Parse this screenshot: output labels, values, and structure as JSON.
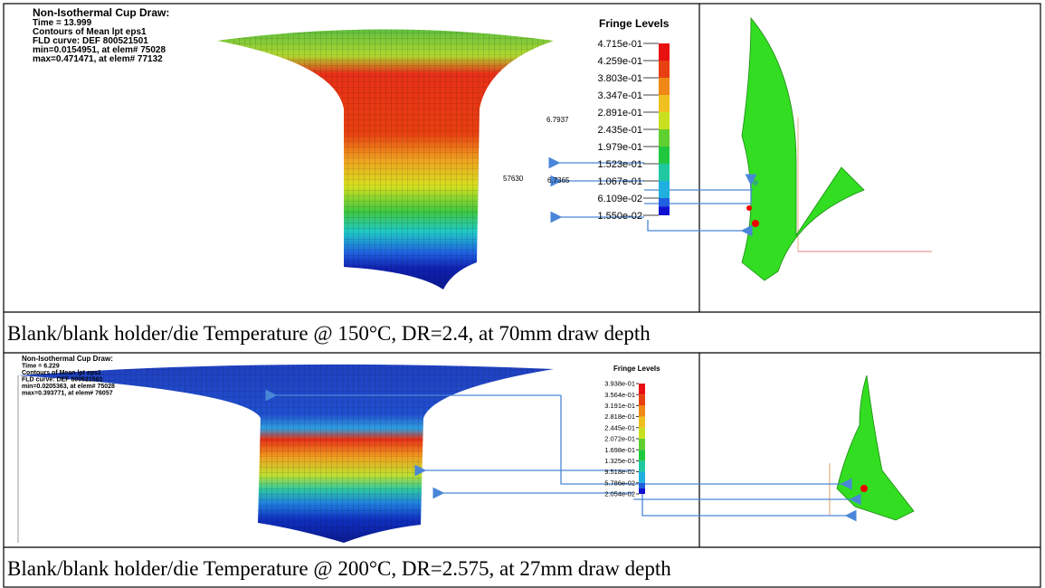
{
  "panels": [
    {
      "header_lines": [
        "Non-Isothermal Cup Draw:",
        "Time =     13.999",
        "Contours of Mean   lpt eps1",
        "FLD curve: DEF 800521501",
        " min=0.0154951, at elem# 75028",
        " max=0.471471, at elem# 77132"
      ],
      "legend": {
        "title": "Fringe Levels",
        "levels": [
          "4.715e-01",
          "4.259e-01",
          "3.803e-01",
          "3.347e-01",
          "2.891e-01",
          "2.435e-01",
          "1.979e-01",
          "1.523e-01",
          "1.067e-01",
          "6.109e-02",
          "1.550e-02"
        ]
      },
      "node_labels": [
        "6.7937",
        "57630",
        "6.7365"
      ],
      "caption": "Blank/blank holder/die Temperature @ 150°C, DR=2.4,  at 70mm draw depth"
    },
    {
      "header_lines": [
        "Non-Isothermal Cup Draw:",
        "Time =     6.229",
        "Contours of Mean   lpt eps1",
        "FLD curve: DEF 800521501",
        " min=0.0205363, at elem# 75028",
        " max=0.393771, at elem# 76057"
      ],
      "legend": {
        "title": "Fringe Levels",
        "levels": [
          "3.938e-01",
          "3.564e-01",
          "3.191e-01",
          "2.818e-01",
          "2.445e-01",
          "2.072e-01",
          "1.698e-01",
          "1.325e-01",
          "9.518e-02",
          "5.786e-02",
          "2.054e-02"
        ]
      },
      "node_labels": [],
      "caption": "Blank/blank holder/die Temperature @ 200°C, DR=2.575, at 27mm draw depth"
    }
  ]
}
